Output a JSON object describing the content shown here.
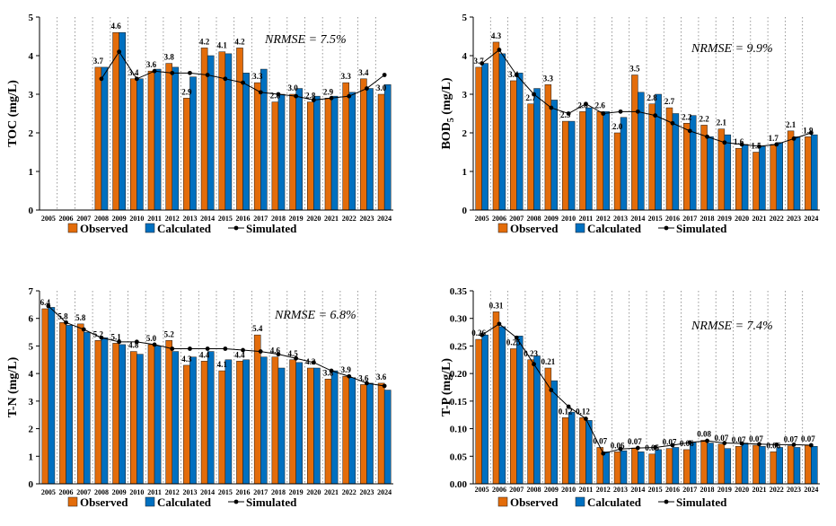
{
  "colors": {
    "observed": "#E36C0A",
    "calculated": "#0070C0",
    "simulated": "#000000"
  },
  "legend": {
    "observed": "Observed",
    "calculated": "Calculated",
    "simulated": "Simulated"
  },
  "chart_data": [
    {
      "type": "bar",
      "ylabel": "TOC (mg/L)",
      "annotation": "NRMSE = 7.5%",
      "ylim": [
        0,
        5
      ],
      "yticks": [
        "0",
        "1",
        "2",
        "3",
        "4",
        "5"
      ],
      "categories": [
        "2005",
        "2006",
        "2007",
        "2008",
        "2009",
        "2010",
        "2011",
        "2012",
        "2013",
        "2014",
        "2015",
        "2016",
        "2017",
        "2018",
        "2019",
        "2020",
        "2021",
        "2022",
        "2023",
        "2024"
      ],
      "observed_labels": [
        "",
        "",
        "",
        "3.7",
        "4.6",
        "3.4",
        "3.6",
        "3.8",
        "2.9",
        "4.2",
        "4.1",
        "4.2",
        "3.3",
        "2.8",
        "3.0",
        "2.8",
        "2.9",
        "3.3",
        "3.4",
        "3.0"
      ],
      "series": [
        {
          "name": "Observed",
          "values": [
            null,
            null,
            null,
            3.7,
            4.6,
            3.4,
            3.6,
            3.8,
            2.9,
            4.2,
            4.1,
            4.2,
            3.3,
            2.8,
            3.0,
            2.8,
            2.9,
            3.3,
            3.4,
            3.0
          ]
        },
        {
          "name": "Calculated",
          "values": [
            null,
            null,
            null,
            3.7,
            4.6,
            3.4,
            3.65,
            3.7,
            3.45,
            4.0,
            4.05,
            3.55,
            3.65,
            3.0,
            3.15,
            2.95,
            2.95,
            3.05,
            3.15,
            3.25
          ]
        },
        {
          "name": "Simulated",
          "values": [
            null,
            null,
            null,
            3.4,
            4.1,
            3.4,
            3.6,
            3.55,
            3.55,
            3.5,
            3.4,
            3.3,
            3.05,
            3.0,
            2.95,
            2.85,
            2.9,
            2.95,
            3.15,
            3.5
          ]
        }
      ]
    },
    {
      "type": "bar",
      "ylabel": "BOD",
      "ylabel_sub": "5",
      "ylabel_suffix": " (mg/L)",
      "annotation": "NRMSE = 9.9%",
      "ylim": [
        0,
        5
      ],
      "yticks": [
        "0",
        "1",
        "2",
        "3",
        "4",
        "5"
      ],
      "categories": [
        "2005",
        "2006",
        "2007",
        "2008",
        "2009",
        "2010",
        "2011",
        "2012",
        "2013",
        "2014",
        "2015",
        "2016",
        "2017",
        "2018",
        "2019",
        "2020",
        "2021",
        "2022",
        "2023",
        "2024"
      ],
      "observed_labels": [
        "3.7",
        "4.3",
        "3.4",
        "2.7",
        "3.3",
        "2.3",
        "2.6",
        "2.6",
        "2.0",
        "3.5",
        "2.8",
        "2.7",
        "2.2",
        "2.2",
        "2.1",
        "1.6",
        "1.5",
        "1.7",
        "2.1",
        "1.9"
      ],
      "series": [
        {
          "name": "Observed",
          "values": [
            3.7,
            4.35,
            3.35,
            2.75,
            3.25,
            2.3,
            2.55,
            2.55,
            2.0,
            3.5,
            2.75,
            2.65,
            2.25,
            2.2,
            2.1,
            1.6,
            1.5,
            1.7,
            2.05,
            1.9
          ]
        },
        {
          "name": "Calculated",
          "values": [
            3.8,
            4.05,
            3.55,
            3.15,
            2.85,
            2.3,
            2.65,
            2.55,
            2.4,
            3.05,
            3.0,
            2.5,
            2.45,
            1.9,
            1.95,
            1.7,
            1.65,
            1.75,
            1.9,
            1.95
          ]
        },
        {
          "name": "Simulated",
          "values": [
            3.8,
            4.15,
            3.5,
            3.0,
            2.65,
            2.5,
            2.75,
            2.5,
            2.55,
            2.55,
            2.45,
            2.25,
            2.05,
            1.9,
            1.75,
            1.7,
            1.65,
            1.7,
            1.85,
            2.0
          ]
        }
      ]
    },
    {
      "type": "bar",
      "ylabel": "T-N (mg/L)",
      "annotation": "NRMSE = 6.8%",
      "ylim": [
        0,
        7
      ],
      "yticks": [
        "0",
        "1",
        "2",
        "3",
        "4",
        "5",
        "6",
        "7"
      ],
      "categories": [
        "2005",
        "2006",
        "2007",
        "2008",
        "2009",
        "2010",
        "2011",
        "2012",
        "2013",
        "2014",
        "2015",
        "2016",
        "2017",
        "2018",
        "2019",
        "2020",
        "2021",
        "2022",
        "2023",
        "2024"
      ],
      "observed_labels": [
        "6.4",
        "5.8",
        "5.8",
        "5.2",
        "5.1",
        "4.8",
        "5.0",
        "5.2",
        "4.3",
        "4.4",
        "4.1",
        "4.4",
        "5.4",
        "4.6",
        "4.5",
        "4.2",
        "3.8",
        "3.9",
        "3.6",
        "3.6"
      ],
      "series": [
        {
          "name": "Observed",
          "values": [
            6.35,
            5.85,
            5.8,
            5.2,
            5.1,
            4.8,
            5.05,
            5.2,
            4.3,
            4.45,
            4.1,
            4.45,
            5.4,
            4.6,
            4.5,
            4.2,
            3.8,
            3.9,
            3.6,
            3.65
          ]
        },
        {
          "name": "Calculated",
          "values": [
            6.4,
            5.75,
            5.5,
            5.3,
            5.05,
            4.7,
            5.0,
            4.8,
            4.6,
            4.8,
            4.5,
            4.5,
            4.6,
            4.2,
            4.4,
            4.2,
            4.1,
            3.85,
            3.65,
            3.4
          ]
        },
        {
          "name": "Simulated",
          "values": [
            6.45,
            5.85,
            5.6,
            5.3,
            5.15,
            5.15,
            5.05,
            4.9,
            4.9,
            4.9,
            4.9,
            4.85,
            4.8,
            4.7,
            4.55,
            4.4,
            4.1,
            3.9,
            3.65,
            3.55
          ]
        }
      ]
    },
    {
      "type": "bar",
      "ylabel": "T-P (mg/L)",
      "annotation": "NRMSE = 7.4%",
      "ylim": [
        0,
        0.35
      ],
      "yticks": [
        "0.00",
        "0.05",
        "0.10",
        "0.15",
        "0.20",
        "0.25",
        "0.30",
        "0.35"
      ],
      "categories": [
        "2005",
        "2006",
        "2007",
        "2008",
        "2009",
        "2010",
        "2011",
        "2012",
        "2013",
        "2014",
        "2015",
        "2016",
        "2017",
        "2018",
        "2019",
        "2020",
        "2021",
        "2022",
        "2023",
        "2024"
      ],
      "observed_labels": [
        "0.26",
        "0.31",
        "0.25",
        "0.23",
        "0.21",
        "0.12",
        "0.12",
        "0.07",
        "0.06",
        "0.07",
        "0.05",
        "0.07",
        "0.06",
        "0.08",
        "0.07",
        "0.07",
        "0.07",
        "0.06",
        "0.07",
        "0.07"
      ],
      "series": [
        {
          "name": "Observed",
          "values": [
            0.262,
            0.312,
            0.245,
            0.225,
            0.21,
            0.12,
            0.12,
            0.066,
            0.058,
            0.065,
            0.054,
            0.064,
            0.062,
            0.079,
            0.072,
            0.068,
            0.07,
            0.058,
            0.069,
            0.07
          ]
        },
        {
          "name": "Calculated",
          "values": [
            0.27,
            0.285,
            0.268,
            0.232,
            0.187,
            0.13,
            0.115,
            0.058,
            0.06,
            0.058,
            0.062,
            0.066,
            0.075,
            0.074,
            0.064,
            0.074,
            0.068,
            0.066,
            0.066,
            0.068
          ]
        },
        {
          "name": "Simulated",
          "values": [
            0.27,
            0.29,
            0.265,
            0.217,
            0.17,
            0.14,
            0.118,
            0.055,
            0.063,
            0.065,
            0.066,
            0.07,
            0.075,
            0.078,
            0.074,
            0.073,
            0.072,
            0.071,
            0.071,
            0.07
          ]
        }
      ]
    }
  ]
}
